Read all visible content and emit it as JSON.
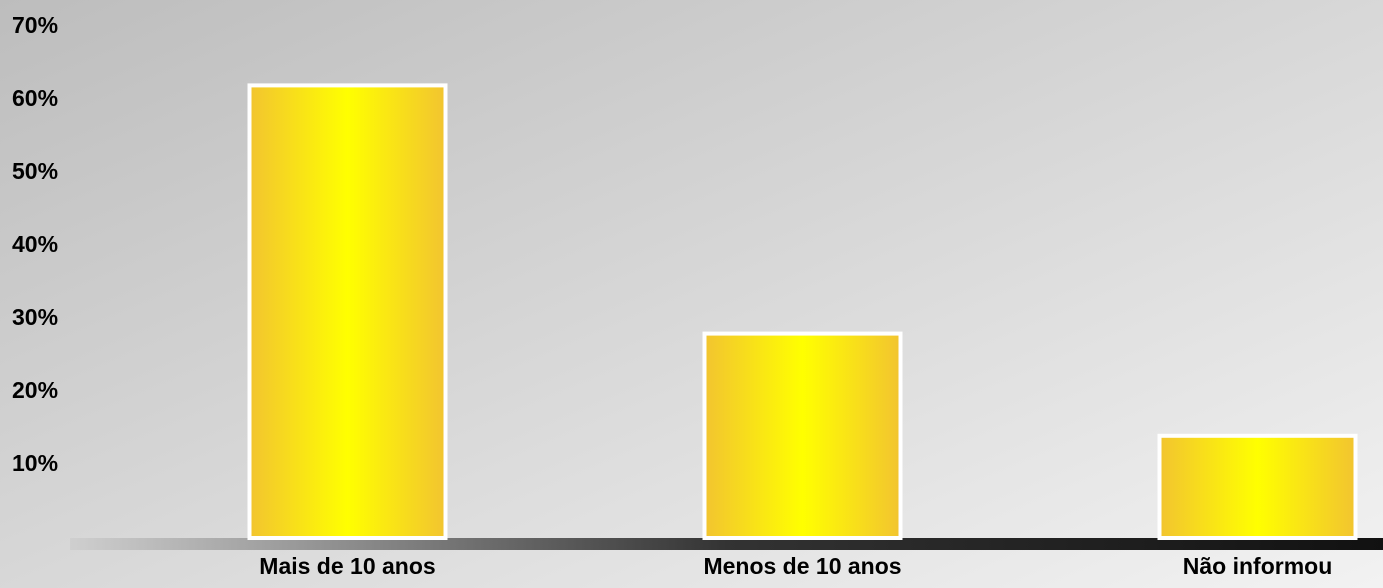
{
  "chart_data": {
    "type": "bar",
    "categories": [
      "Mais de 10 anos",
      "Menos de 10 anos",
      "Não informou"
    ],
    "values": [
      62,
      28,
      14
    ],
    "ylim": [
      0,
      70
    ],
    "yticks": [
      {
        "value": 10,
        "label": "10%"
      },
      {
        "value": 20,
        "label": "20%"
      },
      {
        "value": 30,
        "label": "30%"
      },
      {
        "value": 40,
        "label": "40%"
      },
      {
        "value": 50,
        "label": "50%"
      },
      {
        "value": 60,
        "label": "60%"
      },
      {
        "value": 70,
        "label": "70%"
      }
    ],
    "grid": false
  }
}
